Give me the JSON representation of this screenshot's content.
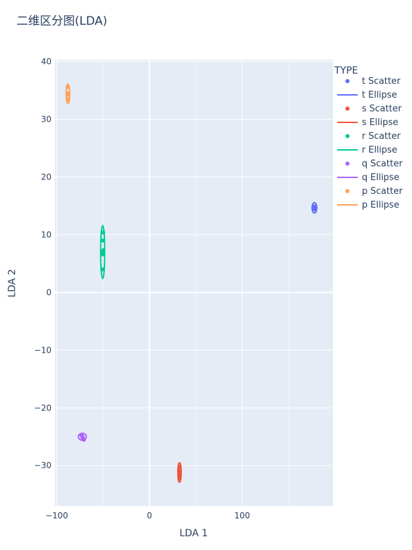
{
  "chart_data": {
    "type": "scatter",
    "title": "二维区分图(LDA)",
    "xlabel": "LDA 1",
    "ylabel": "LDA 2",
    "xlim": [
      -102,
      198
    ],
    "ylim": [
      -37,
      40.3
    ],
    "x_ticks": [
      -100,
      0,
      100
    ],
    "x_tick_labels": [
      "−100",
      "0",
      "100"
    ],
    "y_ticks": [
      -30,
      -20,
      -10,
      0,
      10,
      20,
      30,
      40
    ],
    "y_tick_labels": [
      "−30",
      "−20",
      "−10",
      "0",
      "10",
      "20",
      "30",
      "40"
    ],
    "grid": true,
    "legend_title": "TYPE",
    "legend_placement": "right",
    "series": [
      {
        "group": "t",
        "color": "#636efa",
        "scatter_name": "t Scatter",
        "ellipse_name": "t Ellipse",
        "points": [
          [
            177.5,
            14.9
          ],
          [
            178.2,
            14.4
          ],
          [
            177.9,
            14.7
          ]
        ],
        "ellipse": {
          "cx": 177.9,
          "cy": 14.65,
          "rx": 2.6,
          "ry": 0.9,
          "angle_deg": 0
        }
      },
      {
        "group": "s",
        "color": "#ef553b",
        "scatter_name": "s Scatter",
        "ellipse_name": "s Ellipse",
        "points": [
          [
            32.5,
            -30.2
          ],
          [
            32.0,
            -31.4
          ],
          [
            32.8,
            -31.8
          ],
          [
            32.3,
            -32.2
          ],
          [
            32.6,
            -30.9
          ]
        ],
        "ellipse": {
          "cx": 32.4,
          "cy": -31.2,
          "rx": 1.8,
          "ry": 1.7,
          "angle_deg": 0
        }
      },
      {
        "group": "r",
        "color": "#00cc96",
        "scatter_name": "r Scatter",
        "ellipse_name": "r Ellipse",
        "points": [
          [
            -50.0,
            10.4
          ],
          [
            -51.0,
            7.0
          ],
          [
            -50.3,
            6.6
          ],
          [
            -49.8,
            7.3
          ],
          [
            -50.6,
            4.0
          ],
          [
            -50.2,
            9.0
          ]
        ],
        "ellipse": {
          "cx": -50.5,
          "cy": 7.0,
          "rx": 2.2,
          "ry": 4.6,
          "angle_deg": 0
        }
      },
      {
        "group": "q",
        "color": "#ab63fa",
        "scatter_name": "q Scatter",
        "ellipse_name": "q Ellipse",
        "points": [
          [
            -73.5,
            -24.7
          ],
          [
            -72.0,
            -25.2
          ],
          [
            -70.8,
            -25.5
          ],
          [
            -72.5,
            -24.9
          ]
        ],
        "ellipse": {
          "cx": -72.4,
          "cy": -25.0,
          "rx": 4.3,
          "ry": 0.6,
          "angle_deg": 0
        }
      },
      {
        "group": "p",
        "color": "#ffa15a",
        "scatter_name": "p Scatter",
        "ellipse_name": "p Ellipse",
        "points": [
          [
            -88.3,
            35.6
          ],
          [
            -88.0,
            34.5
          ],
          [
            -87.6,
            34.2
          ],
          [
            -88.1,
            33.4
          ]
        ],
        "ellipse": {
          "cx": -88.0,
          "cy": 34.4,
          "rx": 2.0,
          "ry": 1.7,
          "angle_deg": 0
        }
      }
    ]
  }
}
